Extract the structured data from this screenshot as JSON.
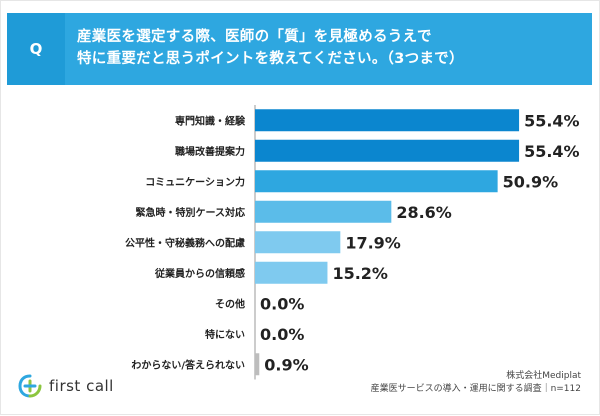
{
  "header": {
    "badge": "Q",
    "line1": "産業医を選定する際、医師の「質」を見極めるうえで",
    "line2": "特に重要だと思うポイントを教えてください。（3つまで）"
  },
  "chart_data": {
    "type": "bar",
    "orientation": "horizontal",
    "categories": [
      "専門知識・経験",
      "職場改善提案力",
      "コミュニケーション力",
      "緊急時・特別ケース対応",
      "公平性・守秘義務への配慮",
      "従業員からの信頼感",
      "その他",
      "特にない",
      "わからない/答えられない"
    ],
    "values": [
      55.4,
      55.4,
      50.9,
      28.6,
      17.9,
      15.2,
      0.0,
      0.0,
      0.9
    ],
    "value_labels": [
      "55.4%",
      "55.4%",
      "50.9%",
      "28.6%",
      "17.9%",
      "15.2%",
      "0.0%",
      "0.0%",
      "0.9%"
    ],
    "bar_colors": [
      "#0b86cf",
      "#0b86cf",
      "#2ea7e0",
      "#5bbce9",
      "#7fcaef",
      "#7fcaef",
      "#bdbdbd",
      "#bdbdbd",
      "#bdbdbd"
    ],
    "xlim": [
      0,
      60
    ],
    "grid": false,
    "legend": "none"
  },
  "footer": {
    "logo_text": "first call",
    "source_line1": "株式会社Mediplat",
    "source_line2": "産業医サービスの導入・運用に関する調査｜n=112"
  }
}
